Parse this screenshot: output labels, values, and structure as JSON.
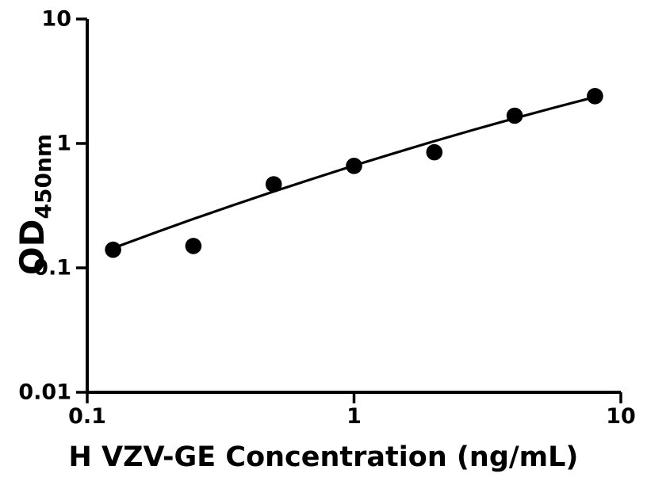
{
  "figure": {
    "background_color": "#ffffff",
    "foreground_color": "#000000"
  },
  "chart_data": {
    "type": "scatter",
    "xlabel": "H VZV-GE Concentration (ng/mL)",
    "ylabel": "OD450nm",
    "ylabel_main": "OD",
    "ylabel_sub": "450nm",
    "x_scale": "log",
    "y_scale": "log",
    "xlim": [
      0.1,
      10
    ],
    "ylim": [
      0.01,
      10
    ],
    "x_tick_values": [
      0.1,
      1,
      10
    ],
    "x_tick_labels": [
      "0.1",
      "1",
      "10"
    ],
    "y_tick_values": [
      0.01,
      0.1,
      1,
      10
    ],
    "y_tick_labels": [
      "0.01",
      "0.1",
      "1",
      "10"
    ],
    "grid": false,
    "legend_position": "none",
    "series": [
      {
        "name": "standard-curve-points",
        "type": "scatter",
        "marker": "filled-circle",
        "color": "#000000",
        "x": [
          0.125,
          0.25,
          0.5,
          1,
          2,
          4,
          8
        ],
        "y": [
          0.14,
          0.15,
          0.47,
          0.66,
          0.85,
          1.67,
          2.4
        ]
      },
      {
        "name": "fit-line",
        "type": "line",
        "color": "#000000",
        "x": [
          0.125,
          0.18,
          0.25,
          0.35,
          0.5,
          0.7,
          1.0,
          1.4,
          2.0,
          2.8,
          4.0,
          5.6,
          8.0
        ],
        "y": [
          0.144,
          0.192,
          0.247,
          0.317,
          0.411,
          0.52,
          0.664,
          0.829,
          1.043,
          1.285,
          1.592,
          1.935,
          2.363
        ]
      }
    ]
  }
}
